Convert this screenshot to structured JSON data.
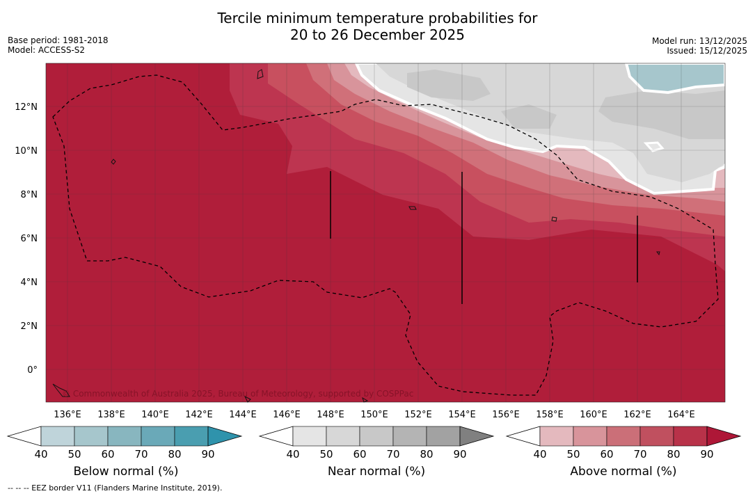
{
  "title": {
    "line1": "Tercile minimum temperature probabilities for",
    "line2": "20 to 26 December 2025"
  },
  "meta": {
    "base_period": "Base period: 1981-2018",
    "model": "Model: ACCESS-S2",
    "model_run": "Model run: 13/12/2025",
    "issued": "Issued: 15/12/2025"
  },
  "map": {
    "lat_labels": [
      "12°N",
      "10°N",
      "8°N",
      "6°N",
      "4°N",
      "2°N",
      "0°"
    ],
    "lon_labels": [
      "136°E",
      "138°E",
      "140°E",
      "142°E",
      "144°E",
      "146°E",
      "148°E",
      "150°E",
      "152°E",
      "154°E",
      "156°E",
      "158°E",
      "160°E",
      "162°E",
      "164°E"
    ],
    "copyright": "© Commonwealth of Australia 2025, Bureau of Meteorology, supported by COSPPac",
    "colors": {
      "above_90": "#b01e3a",
      "above_80": "#bd3550",
      "above_70": "#c8505f",
      "above_60": "#d07079",
      "above_50": "#d8949b",
      "above_40": "#e4b9be",
      "near_40": "#e5e5e5",
      "near_50": "#d7d7d7",
      "near_60": "#c8c8c8",
      "below_50": "#a6c6cc"
    }
  },
  "colorbars": [
    {
      "name": "below",
      "label": "Below normal (%)",
      "ticks": [
        "40",
        "50",
        "60",
        "70",
        "80",
        "90"
      ],
      "colors": [
        "#bfd4da",
        "#a6c6cc",
        "#88b6bf",
        "#6aa9b8",
        "#4a9eb0",
        "#2f93ac"
      ]
    },
    {
      "name": "near",
      "label": "Near normal (%)",
      "ticks": [
        "40",
        "50",
        "60",
        "70",
        "80",
        "90"
      ],
      "colors": [
        "#e5e5e5",
        "#d7d7d7",
        "#c8c8c8",
        "#b4b4b4",
        "#a2a2a2",
        "#808080"
      ]
    },
    {
      "name": "above",
      "label": "Above normal (%)",
      "ticks": [
        "40",
        "50",
        "60",
        "70",
        "80",
        "90"
      ],
      "colors": [
        "#e4b9be",
        "#d8949b",
        "#cb6f78",
        "#c0505f",
        "#b83249",
        "#ae1737"
      ]
    }
  ],
  "footer": "--  --  -- EEZ border V11 (Flanders Marine Institute, 2019)."
}
